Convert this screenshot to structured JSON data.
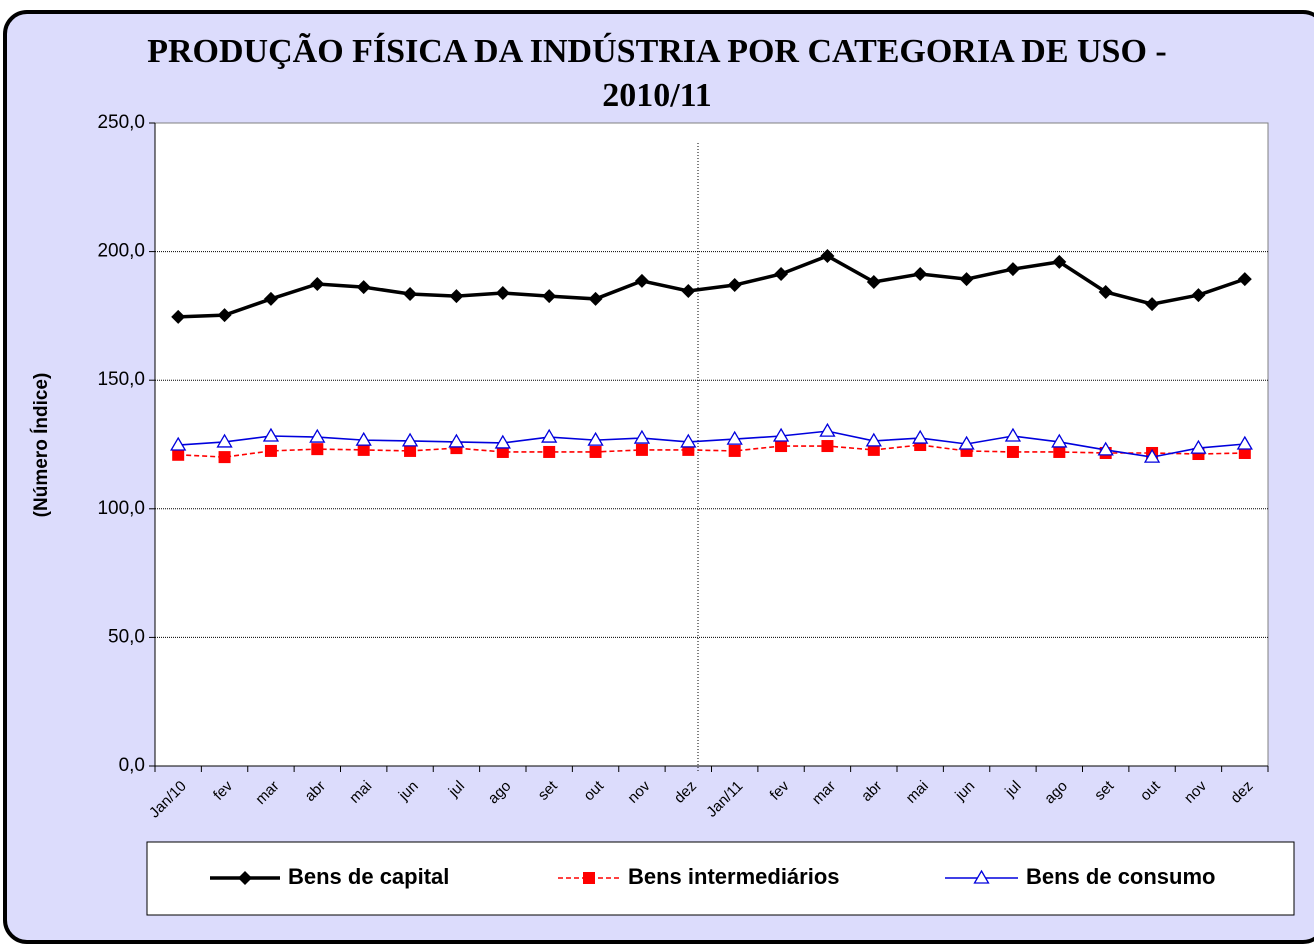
{
  "chart_data": {
    "type": "line",
    "title": "PRODUÇÃO FÍSICA DA INDÚSTRIA POR CATEGORIA DE USO - 2010/11",
    "y_label": "(Número Índice)",
    "categories": [
      "Jan/10",
      "fev",
      "mar",
      "abr",
      "mai",
      "jun",
      "jul",
      "ago",
      "set",
      "out",
      "nov",
      "dez",
      "Jan/11",
      "fev",
      "mar",
      "abr",
      "mai",
      "jun",
      "jul",
      "ago",
      "set",
      "out",
      "nov",
      "dez"
    ],
    "series": [
      {
        "name": "Bens de capital",
        "color": "#000000",
        "marker": "diamond",
        "line_style": "solid",
        "values": [
          174.6,
          175.3,
          181.6,
          187.4,
          186.2,
          183.5,
          182.7,
          183.9,
          182.7,
          181.6,
          188.6,
          184.7,
          187.0,
          191.3,
          198.3,
          188.2,
          191.3,
          189.3,
          193.2,
          196.0,
          184.3,
          179.6,
          183.1,
          189.3
        ]
      },
      {
        "name": "Bens intermediários",
        "color": "#ff0000",
        "marker": "square",
        "line_style": "dashed",
        "values": [
          121.0,
          120.1,
          122.5,
          123.2,
          122.9,
          122.5,
          123.6,
          122.1,
          122.1,
          122.1,
          122.9,
          122.9,
          122.5,
          124.4,
          124.4,
          122.9,
          124.8,
          122.5,
          122.1,
          122.1,
          121.7,
          121.7,
          121.3,
          121.7
        ]
      },
      {
        "name": "Bens de consumo",
        "color": "#0000dd",
        "marker": "triangle",
        "line_style": "solid",
        "values": [
          124.8,
          126.0,
          128.3,
          127.9,
          126.7,
          126.4,
          126.0,
          125.6,
          127.9,
          126.7,
          127.5,
          126.0,
          127.1,
          128.3,
          130.2,
          126.4,
          127.5,
          125.2,
          128.3,
          126.0,
          122.9,
          120.1,
          123.6,
          125.2
        ]
      }
    ],
    "ylim": [
      0,
      250
    ],
    "yticks": [
      {
        "value": 0,
        "label": "0,0"
      },
      {
        "value": 50,
        "label": "50,0"
      },
      {
        "value": 100,
        "label": "100,0"
      },
      {
        "value": 150,
        "label": "150,0"
      },
      {
        "value": 200,
        "label": "200,0"
      },
      {
        "value": 250,
        "label": "250,0"
      }
    ],
    "grid": true,
    "legend": "bottom"
  }
}
